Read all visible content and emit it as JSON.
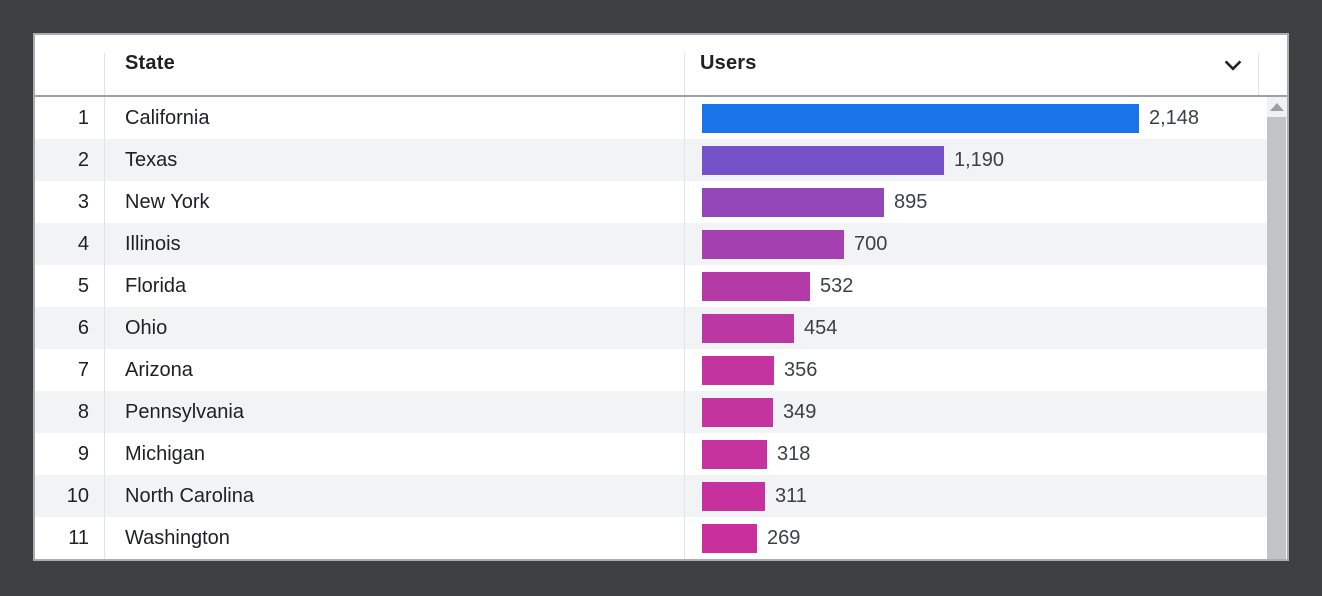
{
  "colors": {
    "accent_blue": "#1a73e8",
    "outer_background": "#3c4043",
    "row_stripe": "#f1f3f4",
    "header_border": "#9aa0a6",
    "scrollbar_thumb": "#c1c3c4"
  },
  "table": {
    "header": {
      "state": "State",
      "users": "Users"
    },
    "max_users": 2148,
    "rows": [
      {
        "rank": "1",
        "state": "California",
        "users_label": "2,148",
        "users_value": 2148,
        "bar_color": "#1a73e8"
      },
      {
        "rank": "2",
        "state": "Texas",
        "users_label": "1,190",
        "users_value": 1190,
        "bar_color": "#7552c7"
      },
      {
        "rank": "3",
        "state": "New York",
        "users_label": "895",
        "users_value": 895,
        "bar_color": "#9447b9"
      },
      {
        "rank": "4",
        "state": "Illinois",
        "users_label": "700",
        "users_value": 700,
        "bar_color": "#a540b0"
      },
      {
        "rank": "5",
        "state": "Florida",
        "users_label": "532",
        "users_value": 532,
        "bar_color": "#b33aa7"
      },
      {
        "rank": "6",
        "state": "Ohio",
        "users_label": "454",
        "users_value": 454,
        "bar_color": "#ba37a4"
      },
      {
        "rank": "7",
        "state": "Arizona",
        "users_label": "356",
        "users_value": 356,
        "bar_color": "#c334a0"
      },
      {
        "rank": "8",
        "state": "Pennsylvania",
        "users_label": "349",
        "users_value": 349,
        "bar_color": "#c4349f"
      },
      {
        "rank": "9",
        "state": "Michigan",
        "users_label": "318",
        "users_value": 318,
        "bar_color": "#c6339e"
      },
      {
        "rank": "10",
        "state": "North Carolina",
        "users_label": "311",
        "users_value": 311,
        "bar_color": "#c8319d"
      },
      {
        "rank": "11",
        "state": "Washington",
        "users_label": "269",
        "users_value": 269,
        "bar_color": "#ca309c"
      }
    ]
  },
  "chart_data": {
    "type": "bar",
    "orientation": "horizontal",
    "title": "",
    "xlabel": "Users",
    "ylabel": "State",
    "categories": [
      "California",
      "Texas",
      "New York",
      "Illinois",
      "Florida",
      "Ohio",
      "Arizona",
      "Pennsylvania",
      "Michigan",
      "North Carolina",
      "Washington"
    ],
    "values": [
      2148,
      1190,
      895,
      700,
      532,
      454,
      356,
      349,
      318,
      311,
      269
    ],
    "value_labels": [
      "2,148",
      "1,190",
      "895",
      "700",
      "532",
      "454",
      "356",
      "349",
      "318",
      "311",
      "269"
    ],
    "ranks": [
      1,
      2,
      3,
      4,
      5,
      6,
      7,
      8,
      9,
      10,
      11
    ],
    "xlim": [
      0,
      2148
    ],
    "grid": false,
    "legend": false,
    "bar_colors": [
      "#1a73e8",
      "#7552c7",
      "#9447b9",
      "#a540b0",
      "#b33aa7",
      "#ba37a4",
      "#c334a0",
      "#c4349f",
      "#c6339e",
      "#c8319d",
      "#ca309c"
    ]
  }
}
